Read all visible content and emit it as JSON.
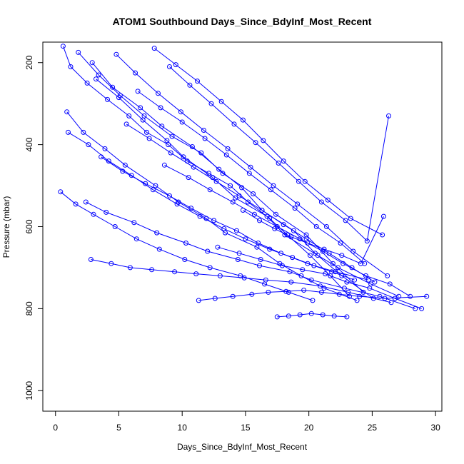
{
  "chart_data": {
    "type": "line",
    "title": "ATOM1 Southbound Days_Since_BdyInf_Most_Recent",
    "xlabel": "Days_Since_BdyInf_Most_Recent",
    "ylabel": "Pressure (mbar)",
    "xlim": [
      -1.0,
      30.5
    ],
    "ylim": [
      1050,
      150
    ],
    "y_reversed": true,
    "x_ticks": [
      "0",
      "5",
      "10",
      "15",
      "20",
      "25",
      "30"
    ],
    "y_ticks": [
      "200",
      "400",
      "600",
      "800",
      "1000"
    ],
    "grid": false,
    "legend": "none",
    "marker": "open-circle",
    "series_color": "#0000ff",
    "series": [
      {
        "x": [
          0.6,
          1.2,
          2.5,
          4.1,
          5.8,
          7.2,
          8.9,
          10.4,
          12.1,
          13.8,
          15.2,
          16.9,
          18.3,
          20.1,
          21.7,
          23.2
        ],
        "y": [
          160,
          210,
          250,
          290,
          330,
          370,
          400,
          440,
          470,
          500,
          540,
          580,
          620,
          670,
          720,
          770
        ]
      },
      {
        "x": [
          1.8,
          3.4,
          5.1,
          7.0,
          9.2,
          11.5,
          13.2,
          15.6,
          17.4,
          19.8,
          21.9,
          24.3
        ],
        "y": [
          175,
          230,
          280,
          330,
          380,
          420,
          470,
          520,
          570,
          620,
          690,
          760
        ]
      },
      {
        "x": [
          2.9,
          4.5,
          6.7,
          8.4,
          10.8,
          12.9,
          14.7,
          16.3,
          18.8,
          20.5,
          22.6,
          25.1
        ],
        "y": [
          200,
          260,
          310,
          355,
          405,
          460,
          505,
          560,
          610,
          665,
          720,
          775
        ]
      },
      {
        "x": [
          0.9,
          2.2,
          3.9,
          5.5,
          7.9,
          9.7,
          11.9,
          13.4,
          15.9,
          17.7,
          19.4,
          21.2,
          23.8
        ],
        "y": [
          320,
          370,
          410,
          450,
          500,
          540,
          580,
          615,
          650,
          690,
          720,
          750,
          780
        ]
      },
      {
        "x": [
          3.2,
          5.0,
          6.9,
          8.8,
          10.1,
          12.4,
          14.2,
          16.7,
          18.1,
          20.7,
          22.3,
          24.9,
          27.1
        ],
        "y": [
          240,
          285,
          340,
          390,
          430,
          480,
          530,
          575,
          620,
          670,
          700,
          740,
          770
        ]
      },
      {
        "x": [
          4.8,
          6.3,
          8.1,
          9.9,
          11.7,
          13.6,
          15.4,
          17.2,
          19.1,
          21.4,
          23.5,
          26.2
        ],
        "y": [
          180,
          225,
          275,
          320,
          365,
          410,
          455,
          500,
          545,
          600,
          660,
          720
        ]
      },
      {
        "x": [
          2.4,
          4.0,
          6.2,
          8.0,
          10.3,
          12.0,
          14.4,
          16.1,
          18.5,
          20.2,
          22.8,
          25.6,
          28.4
        ],
        "y": [
          540,
          565,
          590,
          615,
          640,
          660,
          680,
          695,
          710,
          730,
          750,
          770,
          800
        ]
      },
      {
        "x": [
          2.8,
          4.4,
          5.9,
          7.6,
          9.4,
          11.1,
          13.0,
          14.9,
          16.6,
          18.6,
          20.9,
          23.1,
          26.5
        ],
        "y": [
          680,
          690,
          700,
          705,
          710,
          715,
          720,
          725,
          730,
          735,
          745,
          760,
          785
        ]
      },
      {
        "x": [
          11.3,
          12.6,
          14.0,
          15.5,
          16.8,
          18.2,
          19.6,
          21.0,
          22.4,
          24.0,
          26.0,
          29.3
        ],
        "y": [
          780,
          775,
          770,
          765,
          760,
          758,
          755,
          760,
          765,
          770,
          775,
          770
        ]
      },
      {
        "x": [
          17.5,
          18.4,
          19.3,
          20.2,
          21.1,
          22.0,
          23.0
        ],
        "y": [
          820,
          818,
          815,
          812,
          815,
          818,
          820
        ]
      },
      {
        "x": [
          6.5,
          8.3,
          10.0,
          11.8,
          13.5,
          15.3,
          17.0,
          18.9,
          20.6,
          22.5,
          24.4
        ],
        "y": [
          270,
          310,
          345,
          385,
          425,
          470,
          510,
          555,
          600,
          640,
          690
        ]
      },
      {
        "x": [
          7.8,
          9.5,
          11.2,
          13.1,
          14.8,
          16.4,
          18.0,
          19.7,
          21.5,
          23.3,
          25.8
        ],
        "y": [
          165,
          205,
          245,
          295,
          340,
          390,
          440,
          490,
          535,
          580,
          620
        ]
      },
      {
        "x": [
          1.0,
          2.6,
          4.2,
          6.0,
          7.7,
          9.6,
          11.4,
          13.3,
          15.0,
          16.9,
          18.7,
          20.4,
          22.1,
          24.7
        ],
        "y": [
          370,
          400,
          440,
          475,
          510,
          545,
          575,
          605,
          630,
          655,
          675,
          695,
          710,
          730
        ]
      },
      {
        "x": [
          9.0,
          10.6,
          12.3,
          14.1,
          15.8,
          17.6,
          19.2,
          21.0,
          22.9,
          24.6,
          26.3
        ],
        "y": [
          210,
          255,
          300,
          350,
          395,
          445,
          490,
          540,
          585,
          635,
          330
        ]
      },
      {
        "x": [
          12.8,
          14.5,
          16.2,
          17.9,
          19.5,
          21.3,
          23.0,
          24.8,
          26.8,
          28.9
        ],
        "y": [
          650,
          665,
          680,
          695,
          705,
          715,
          735,
          750,
          775,
          800
        ]
      },
      {
        "x": [
          3.6,
          5.3,
          7.1,
          9.0,
          10.7,
          12.5,
          14.3,
          16.0,
          17.8,
          19.9,
          21.8,
          23.6
        ],
        "y": [
          430,
          465,
          495,
          525,
          555,
          585,
          610,
          640,
          665,
          690,
          710,
          730
        ]
      },
      {
        "x": [
          0.4,
          1.6,
          3.0,
          4.7,
          6.4,
          8.2,
          10.2,
          12.2,
          14.6,
          16.5,
          18.4,
          20.3
        ],
        "y": [
          515,
          545,
          570,
          600,
          630,
          655,
          680,
          700,
          720,
          740,
          760,
          780
        ]
      },
      {
        "x": [
          14.8,
          16.1,
          17.3,
          18.6,
          19.9,
          21.2,
          22.6,
          24.1,
          25.9
        ],
        "y": [
          560,
          585,
          605,
          625,
          640,
          655,
          670,
          690,
          575
        ]
      },
      {
        "x": [
          5.6,
          7.4,
          9.1,
          10.9,
          12.7,
          14.5,
          16.3,
          18.0,
          19.8,
          21.6,
          23.4,
          25.2
        ],
        "y": [
          350,
          385,
          420,
          455,
          490,
          525,
          560,
          595,
          630,
          665,
          700,
          735
        ]
      },
      {
        "x": [
          8.6,
          10.5,
          12.2,
          14.0,
          15.7,
          17.5,
          19.3,
          21.1,
          22.7,
          24.5,
          26.4,
          28.0
        ],
        "y": [
          450,
          480,
          510,
          540,
          570,
          600,
          630,
          660,
          690,
          720,
          740,
          770
        ]
      }
    ]
  }
}
